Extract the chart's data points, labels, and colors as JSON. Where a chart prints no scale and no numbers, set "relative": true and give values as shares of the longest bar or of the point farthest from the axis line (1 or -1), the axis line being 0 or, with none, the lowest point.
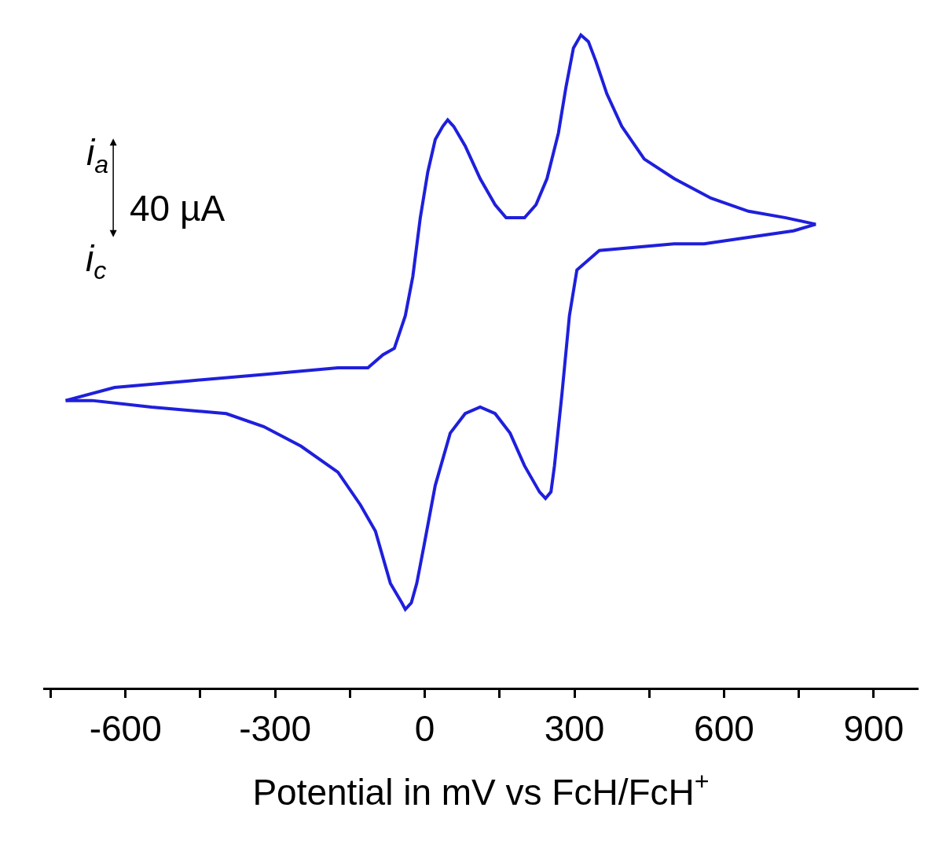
{
  "chart_data": {
    "type": "line",
    "relative": true,
    "xlabel": "Potential in mV vs FcH/FcH$^{+}$",
    "annotations": [
      "i$_{a}$",
      "40 µA",
      "i$_{c}$"
    ],
    "xlim": [
      -765,
      990
    ],
    "xticks": [
      {
        "value": -750,
        "label": null
      },
      -600,
      {
        "value": -450,
        "label": null
      },
      -300,
      {
        "value": -150,
        "label": null
      },
      0,
      {
        "value": 150,
        "label": null
      },
      300,
      {
        "value": 450,
        "label": null
      },
      600,
      {
        "value": 750,
        "label": null
      },
      900
    ],
    "marker": "none",
    "line_style": "solid",
    "series": [
      {
        "color": "#1f1fdc",
        "x": [
          -720,
          -622,
          -473,
          -323,
          -174,
          -114,
          -84,
          -61,
          -39,
          -24,
          -9,
          6,
          21,
          36,
          46,
          58,
          81,
          111,
          141,
          163,
          183,
          200,
          223,
          245,
          268,
          283,
          298,
          313,
          328,
          343,
          365,
          395,
          440,
          500,
          574,
          649,
          724,
          784
        ],
        "values": [
          0.44,
          0.46,
          0.47,
          0.48,
          0.49,
          0.49,
          0.51,
          0.52,
          0.57,
          0.63,
          0.72,
          0.79,
          0.84,
          0.86,
          0.87,
          0.86,
          0.83,
          0.78,
          0.74,
          0.72,
          0.72,
          0.72,
          0.74,
          0.78,
          0.85,
          0.92,
          0.98,
          1.0,
          0.99,
          0.96,
          0.91,
          0.86,
          0.81,
          0.78,
          0.75,
          0.73,
          0.72,
          0.71
        ]
      },
      {
        "color": "#1f1fdc",
        "x": [
          784,
          739,
          649,
          560,
          500,
          350,
          305,
          290,
          275,
          260,
          253,
          242,
          230,
          200,
          171,
          141,
          111,
          81,
          51,
          21,
          -1,
          -16,
          -27,
          -39,
          -46,
          -69,
          -99,
          -129,
          -174,
          -248,
          -323,
          -398,
          -548,
          -667,
          -720
        ],
        "values": [
          0.71,
          0.7,
          0.69,
          0.68,
          0.68,
          0.67,
          0.64,
          0.57,
          0.45,
          0.34,
          0.3,
          0.29,
          0.3,
          0.34,
          0.39,
          0.42,
          0.43,
          0.42,
          0.39,
          0.31,
          0.22,
          0.16,
          0.13,
          0.12,
          0.13,
          0.16,
          0.24,
          0.28,
          0.33,
          0.37,
          0.4,
          0.42,
          0.43,
          0.44,
          0.44
        ]
      }
    ]
  }
}
